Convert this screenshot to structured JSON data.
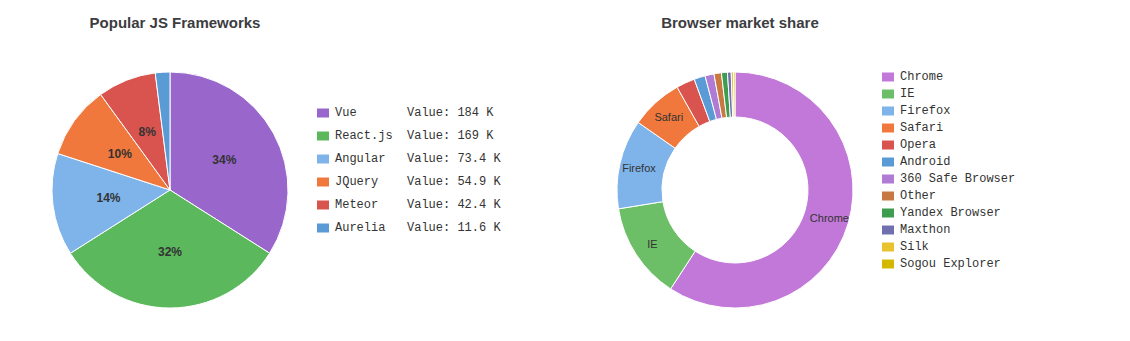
{
  "chart_data": [
    {
      "type": "pie",
      "title": "Popular JS Frameworks",
      "categories": [
        "Vue       Value: 184 K",
        "React.js  Value: 169 K",
        "Angular   Value: 73.4 K",
        "JQuery    Value: 54.9 K",
        "Meteor    Value: 42.4 K",
        "Aurelia   Value: 11.6 K"
      ],
      "values": [
        34,
        32,
        14,
        10,
        8,
        2
      ],
      "value_labels": [
        "34%",
        "32%",
        "14%",
        "10%",
        "8%",
        null
      ],
      "colors": [
        "#9966cc",
        "#5cb85c",
        "#7eb4ea",
        "#f0783c",
        "#d9534f",
        "#5b9bd5"
      ],
      "data_labels": true,
      "legend": "right"
    },
    {
      "type": "donut",
      "title": "Browser market share",
      "categories": [
        "Chrome",
        "IE",
        "Firefox",
        "Safari",
        "Opera",
        "Android",
        "360 Safe Browser",
        "Other",
        "Yandex Browser",
        "Maxthon",
        "Silk",
        "Sogou Explorer"
      ],
      "values": [
        58.0,
        13.0,
        12.0,
        7.0,
        2.5,
        1.5,
        1.2,
        1.0,
        0.8,
        0.5,
        0.3,
        0.2
      ],
      "colors": [
        "#c278d8",
        "#6dbf67",
        "#7eb4ea",
        "#f0783c",
        "#d9534f",
        "#5b9bd5",
        "#b07bd4",
        "#c87941",
        "#3d9e4f",
        "#7070b0",
        "#e8c32e",
        "#d4b800"
      ],
      "annotations": [
        "Chrome",
        "IE",
        "Firefox",
        "Safari"
      ],
      "legend": "right"
    }
  ]
}
